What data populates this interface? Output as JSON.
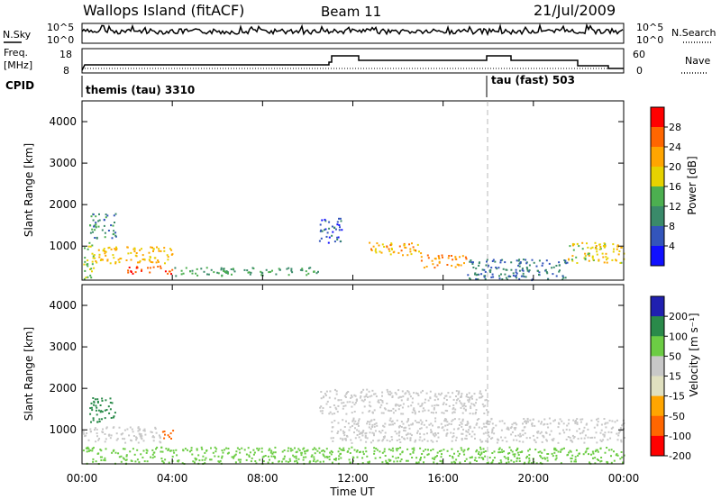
{
  "header": {
    "title": "Wallops Island (fitACF)",
    "beam": "Beam 11",
    "date": "21/Jul/2009"
  },
  "panels": {
    "nsky_label": "N.Sky",
    "nsky_tick_top": "10^5",
    "nsky_tick_bottom": "10^0",
    "nsearch_label": "N.Search",
    "freq_label_line1": "Freq.",
    "freq_label_line2": "[MHz]",
    "freq_tick_top": "18",
    "freq_tick_bottom": "8",
    "nave_label": "Nave",
    "nave_tick_top": "60",
    "nave_tick_bottom": "0",
    "cpid_label": "CPID",
    "cpid_1": "themis (tau) 3310",
    "cpid_2": "tau (fast) 503"
  },
  "power_panel": {
    "ylabel": "Slant Range [km]",
    "colorbar_label": "Power [dB]",
    "colorbar_ticks": [
      "28",
      "24",
      "20",
      "16",
      "12",
      "8",
      "4"
    ]
  },
  "velocity_panel": {
    "ylabel": "Slant Range [km]",
    "colorbar_label": "Velocity [m s⁻¹]",
    "colorbar_ticks": [
      "200",
      "100",
      "50",
      "15",
      "-15",
      "-50",
      "-100",
      "-200"
    ]
  },
  "xaxis": {
    "label": "Time UT",
    "ticks": [
      "00:00",
      "04:00",
      "08:00",
      "12:00",
      "16:00",
      "20:00",
      "00:00"
    ]
  },
  "colors": {
    "power_scale": [
      "#ff0000",
      "#ff6600",
      "#ffa500",
      "#e6d200",
      "#4caf50",
      "#3a8a6a",
      "#3355bb",
      "#1010ff"
    ],
    "velocity_scale": [
      "#2020b0",
      "#2a8a4a",
      "#6ccc44",
      "#c8c8c8",
      "#e0e0c0",
      "#ffa500",
      "#ff6600",
      "#ff0000"
    ]
  },
  "chart_data": [
    {
      "type": "heatmap",
      "title": "",
      "xlabel": "Time UT",
      "ylabel": "Slant Range [km]",
      "xlim": [
        0,
        24
      ],
      "ylim": [
        180,
        4500
      ],
      "yticks": [
        1000,
        2000,
        3000,
        4000
      ],
      "colorbar": "Power [dB]",
      "colorbar_range": [
        0,
        32
      ],
      "grid": false,
      "echo_regions": [
        {
          "t_start": 0.0,
          "t_end": 0.5,
          "range_start": 200,
          "range_end": 1100,
          "value": 16
        },
        {
          "t_start": 0.3,
          "t_end": 1.5,
          "range_start": 1200,
          "range_end": 1800,
          "value": 10
        },
        {
          "t_start": 0.5,
          "t_end": 4.0,
          "range_start": 600,
          "range_end": 1000,
          "value": 20
        },
        {
          "t_start": 2.0,
          "t_end": 4.0,
          "range_start": 350,
          "range_end": 550,
          "value": 28
        },
        {
          "t_start": 4.0,
          "t_end": 10.5,
          "range_start": 300,
          "range_end": 500,
          "value": 12
        },
        {
          "t_start": 10.5,
          "t_end": 11.5,
          "range_start": 1100,
          "range_end": 1700,
          "value": 6
        },
        {
          "t_start": 12.5,
          "t_end": 15.0,
          "range_start": 800,
          "range_end": 1100,
          "value": 22
        },
        {
          "t_start": 15.0,
          "t_end": 17.0,
          "range_start": 500,
          "range_end": 800,
          "value": 24
        },
        {
          "t_start": 17.0,
          "t_end": 21.5,
          "range_start": 200,
          "range_end": 700,
          "value": 8
        },
        {
          "t_start": 21.5,
          "t_end": 24.0,
          "range_start": 600,
          "range_end": 1100,
          "value": 18
        }
      ]
    },
    {
      "type": "heatmap",
      "title": "",
      "xlabel": "Time UT",
      "ylabel": "Slant Range [km]",
      "xlim": [
        0,
        24
      ],
      "ylim": [
        180,
        4500
      ],
      "yticks": [
        1000,
        2000,
        3000,
        4000
      ],
      "colorbar": "Velocity [m s-1]",
      "colorbar_range": [
        -200,
        200
      ],
      "grid": false,
      "echo_regions": [
        {
          "t_start": 0.0,
          "t_end": 3.5,
          "range_start": 700,
          "range_end": 1100,
          "value": 0
        },
        {
          "t_start": 0.3,
          "t_end": 1.5,
          "range_start": 1200,
          "range_end": 1800,
          "value": 80
        },
        {
          "t_start": 3.5,
          "t_end": 4.0,
          "range_start": 800,
          "range_end": 1100,
          "value": -150
        },
        {
          "t_start": 0.0,
          "t_end": 11.0,
          "range_start": 200,
          "range_end": 600,
          "value": 40
        },
        {
          "t_start": 11.0,
          "t_end": 24.0,
          "range_start": 700,
          "range_end": 1300,
          "value": 0
        },
        {
          "t_start": 11.0,
          "t_end": 24.0,
          "range_start": 200,
          "range_end": 600,
          "value": 20
        },
        {
          "t_start": 10.5,
          "t_end": 18.0,
          "range_start": 1400,
          "range_end": 2000,
          "value": 0
        }
      ]
    }
  ]
}
